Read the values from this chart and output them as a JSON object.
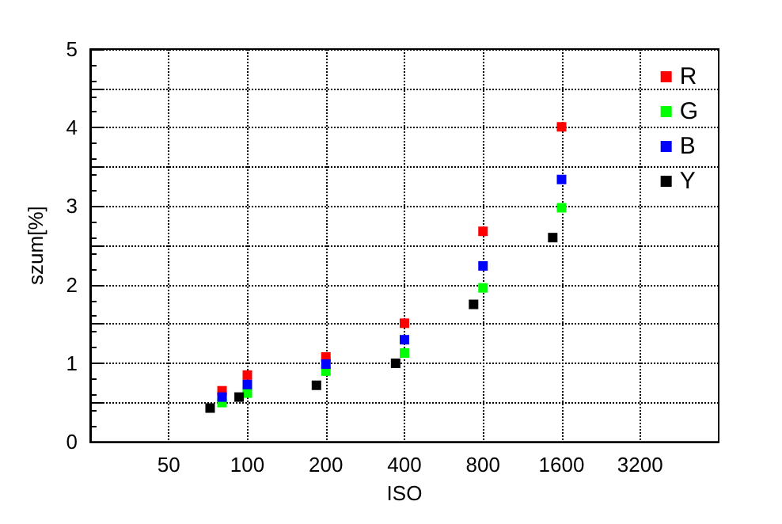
{
  "chart_data": {
    "type": "scatter",
    "xlabel": "ISO",
    "ylabel": "szum[%]",
    "log": "x",
    "xlim": [
      25,
      6400
    ],
    "xticks": [
      50,
      100,
      200,
      400,
      800,
      1600,
      3200
    ],
    "ylim": [
      0,
      5
    ],
    "yticks": [
      0,
      {
        "value": 0.5,
        "label": null
      },
      1,
      {
        "value": 1.5,
        "label": null
      },
      2,
      {
        "value": 2.5,
        "label": null
      },
      3,
      {
        "value": 3.5,
        "label": null
      },
      4,
      {
        "value": 4.5,
        "label": null
      },
      5
    ],
    "grid": true,
    "legend": "top right",
    "marker": "square",
    "series": [
      {
        "name": "R",
        "color": "#ff0000",
        "x": [
          80,
          100,
          200,
          400,
          800,
          1600
        ],
        "values": [
          0.65,
          0.85,
          1.08,
          1.51,
          2.68,
          4.01
        ]
      },
      {
        "name": "G",
        "color": "#00ff00",
        "x": [
          80,
          100,
          200,
          400,
          800,
          1600
        ],
        "values": [
          0.5,
          0.62,
          0.9,
          1.13,
          1.96,
          2.98
        ]
      },
      {
        "name": "B",
        "color": "#0000ff",
        "x": [
          80,
          100,
          200,
          400,
          800,
          1600
        ],
        "values": [
          0.57,
          0.73,
          0.99,
          1.3,
          2.24,
          3.34
        ]
      },
      {
        "name": "Y",
        "color": "#000000",
        "x": [
          72,
          93,
          184,
          370,
          736,
          1480
        ],
        "values": [
          0.43,
          0.57,
          0.72,
          1.0,
          1.75,
          2.6
        ]
      }
    ]
  }
}
